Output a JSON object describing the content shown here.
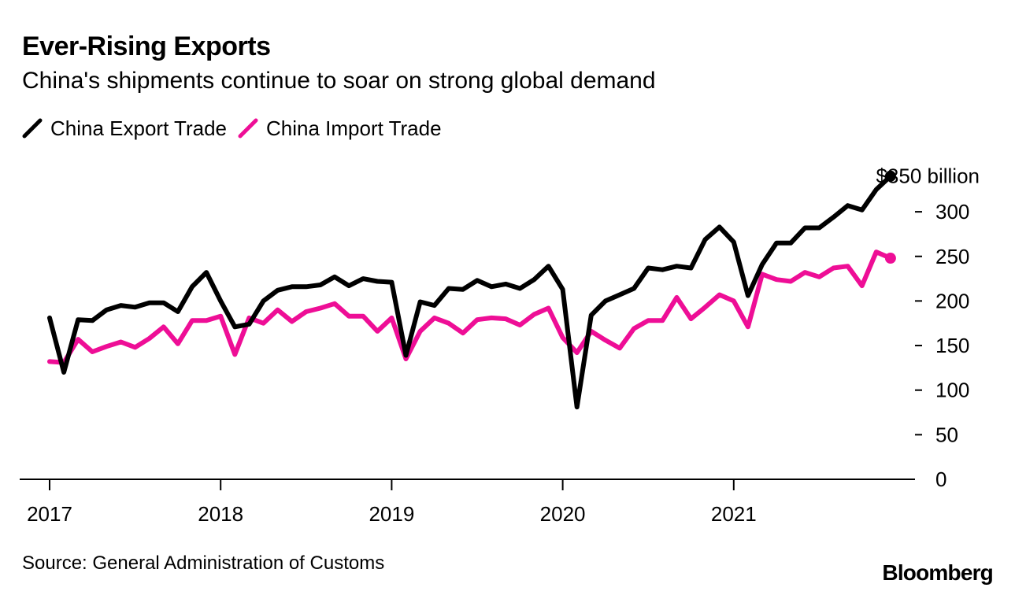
{
  "header": {
    "title": "Ever-Rising Exports",
    "subtitle": "China's shipments continue to soar on strong global demand"
  },
  "footer": {
    "source": "Source: General Administration of Customs",
    "brand": "Bloomberg"
  },
  "colors": {
    "export": "#000000",
    "import": "#ee0e96",
    "axis": "#000000"
  },
  "chart_data": {
    "type": "line",
    "title": "Ever-Rising Exports",
    "subtitle": "China's shipments continue to soar on strong global demand",
    "xlabel": "",
    "ylabel": "",
    "x_start": "2017-01",
    "x_tick_labels": [
      "2017",
      "2018",
      "2019",
      "2020",
      "2021"
    ],
    "x_tick_index": [
      0,
      12,
      24,
      36,
      48
    ],
    "ylim": [
      0,
      350
    ],
    "y_ticks": [
      0,
      50,
      100,
      150,
      200,
      250,
      300
    ],
    "y_top_label": "$350 billion",
    "y_axis_side": "right",
    "legend_position": "top-left",
    "grid": false,
    "series": [
      {
        "name": "China Export Trade",
        "values": [
          181,
          120,
          179,
          178,
          190,
          195,
          193,
          198,
          198,
          188,
          216,
          232,
          200,
          171,
          174,
          200,
          212,
          216,
          216,
          218,
          227,
          217,
          225,
          222,
          221,
          139,
          199,
          195,
          214,
          213,
          223,
          216,
          219,
          214,
          224,
          239,
          213,
          81,
          184,
          200,
          207,
          214,
          237,
          235,
          239,
          237,
          269,
          283,
          266,
          206,
          241,
          265,
          265,
          282,
          282,
          294,
          307,
          302,
          325,
          340
        ]
      },
      {
        "name": "China Import Trade",
        "values": [
          132,
          131,
          157,
          143,
          149,
          154,
          148,
          158,
          171,
          152,
          178,
          178,
          183,
          140,
          181,
          175,
          190,
          177,
          188,
          192,
          197,
          183,
          183,
          166,
          181,
          135,
          166,
          181,
          175,
          164,
          179,
          181,
          180,
          173,
          185,
          192,
          159,
          142,
          166,
          156,
          147,
          169,
          178,
          178,
          204,
          180,
          193,
          207,
          200,
          171,
          230,
          224,
          222,
          232,
          227,
          237,
          239,
          217,
          255,
          248
        ]
      }
    ]
  }
}
